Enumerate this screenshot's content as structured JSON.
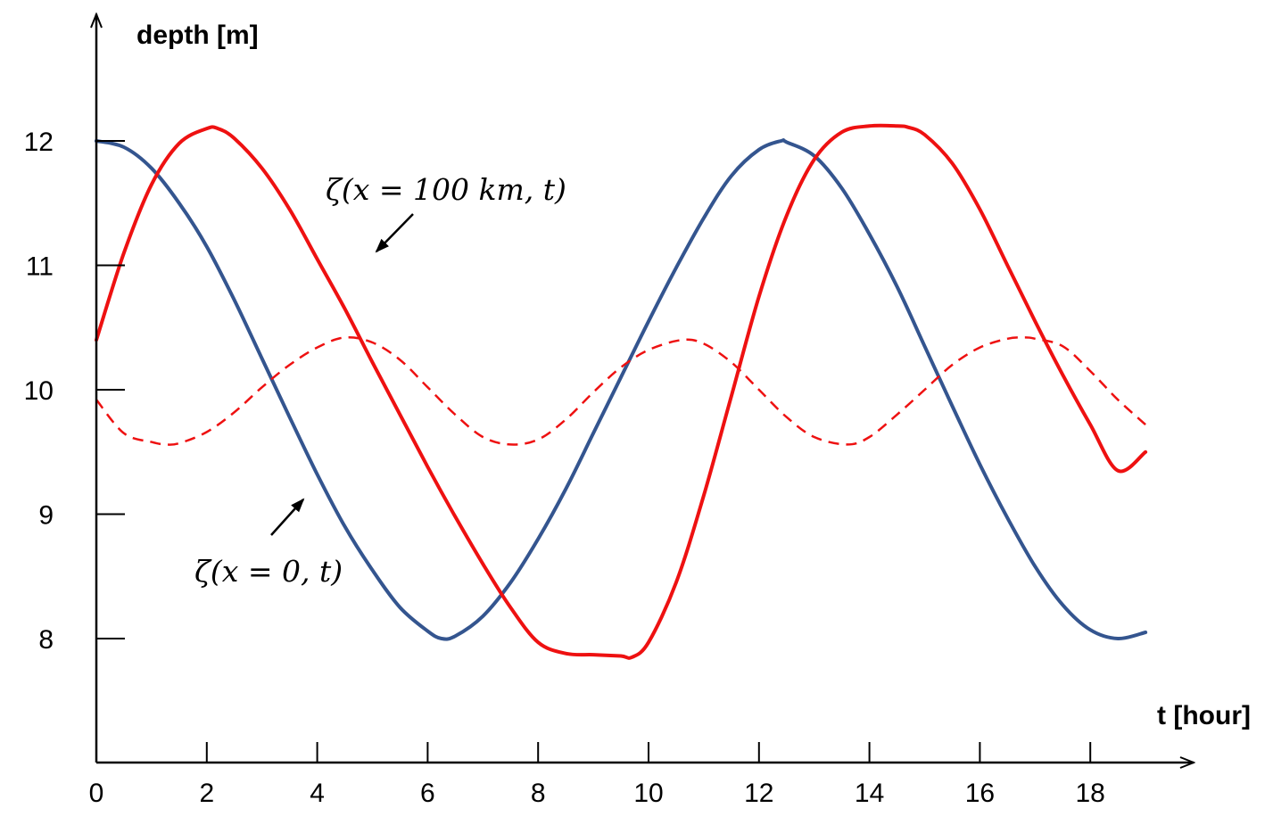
{
  "chart_data": {
    "type": "line",
    "title": "",
    "xlabel": "t [hour]",
    "ylabel": "depth [m]",
    "xlim": [
      0,
      19
    ],
    "ylim": [
      7,
      13
    ],
    "x_ticks": [
      0,
      2,
      4,
      6,
      8,
      10,
      12,
      14,
      16,
      18
    ],
    "y_ticks": [
      8,
      9,
      10,
      11,
      12
    ],
    "grid": false,
    "legend": "none",
    "series": [
      {
        "color": "#34558f",
        "style": "solid",
        "x": [
          0,
          0.5,
          1,
          1.5,
          2,
          2.5,
          3,
          3.5,
          4,
          4.5,
          5,
          5.5,
          6,
          6.25,
          6.5,
          7,
          7.5,
          8,
          8.5,
          9,
          9.5,
          10,
          10.5,
          11,
          11.5,
          12,
          12.4,
          12.5,
          13,
          13.5,
          14,
          14.5,
          15,
          15.5,
          16,
          16.5,
          17,
          17.5,
          18,
          18.5,
          19
        ],
        "values": [
          12.0,
          11.95,
          11.78,
          11.5,
          11.15,
          10.72,
          10.25,
          9.78,
          9.32,
          8.9,
          8.55,
          8.25,
          8.06,
          8.0,
          8.02,
          8.18,
          8.45,
          8.8,
          9.2,
          9.65,
          10.1,
          10.55,
          10.98,
          11.38,
          11.72,
          11.93,
          12.0,
          11.99,
          11.88,
          11.62,
          11.25,
          10.83,
          10.35,
          9.87,
          9.4,
          8.97,
          8.58,
          8.27,
          8.07,
          8.0,
          8.05
        ]
      },
      {
        "color": "#ee1111",
        "style": "solid",
        "x": [
          0,
          0.5,
          1,
          1.5,
          2,
          2.2,
          2.5,
          3,
          3.5,
          4,
          4.5,
          5,
          5.5,
          6,
          6.5,
          7,
          7.5,
          8,
          8.5,
          9,
          9.5,
          9.7,
          10,
          10.5,
          11,
          11.5,
          12,
          12.5,
          13,
          13.5,
          14,
          14.5,
          14.7,
          15,
          15.5,
          16,
          16.5,
          17,
          17.5,
          18,
          18.5,
          19
        ],
        "values": [
          10.4,
          11.1,
          11.65,
          11.98,
          12.1,
          12.1,
          12.02,
          11.78,
          11.45,
          11.05,
          10.65,
          10.22,
          9.8,
          9.38,
          8.98,
          8.6,
          8.25,
          7.97,
          7.88,
          7.87,
          7.86,
          7.85,
          7.97,
          8.45,
          9.15,
          9.95,
          10.75,
          11.4,
          11.85,
          12.07,
          12.12,
          12.12,
          12.11,
          12.05,
          11.82,
          11.45,
          11.0,
          10.55,
          10.12,
          9.72,
          9.35,
          9.5
        ]
      },
      {
        "color": "#ee1111",
        "style": "dashed",
        "x": [
          0,
          0.5,
          1,
          1.25,
          1.5,
          2,
          2.5,
          3,
          3.5,
          4,
          4.5,
          5,
          5.5,
          6,
          6.5,
          7,
          7.5,
          8,
          8.5,
          9,
          9.5,
          10,
          10.6,
          11,
          11.5,
          12,
          12.5,
          13,
          13.6,
          14,
          14.5,
          15,
          15.5,
          16,
          16.5,
          16.8,
          17,
          17.5,
          18,
          18.5,
          19
        ],
        "values": [
          9.92,
          9.65,
          9.58,
          9.56,
          9.57,
          9.66,
          9.82,
          10.02,
          10.2,
          10.34,
          10.42,
          10.38,
          10.24,
          10.02,
          9.8,
          9.62,
          9.56,
          9.6,
          9.76,
          9.98,
          10.18,
          10.32,
          10.4,
          10.37,
          10.22,
          10.0,
          9.78,
          9.62,
          9.56,
          9.62,
          9.8,
          10.0,
          10.2,
          10.34,
          10.41,
          10.42,
          10.41,
          10.35,
          10.15,
          9.92,
          9.72
        ]
      }
    ],
    "annotations": [
      {
        "text": "ζ(x = 100 km, t)",
        "arrow": "down-left"
      },
      {
        "text": "ζ(x = 0, t)",
        "arrow": "up-right"
      }
    ]
  }
}
